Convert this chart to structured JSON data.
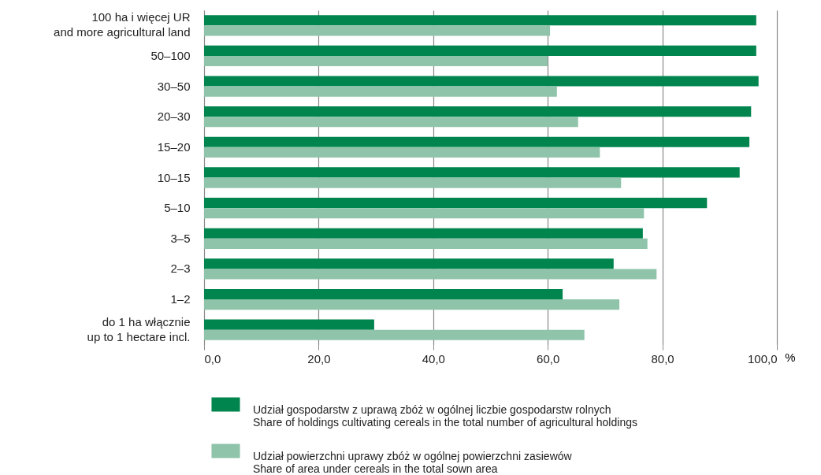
{
  "chart_data": {
    "type": "bar",
    "orientation": "horizontal",
    "categories": [
      "100 ha i więcej UR\nand more agricultural land",
      "50–100",
      "30–50",
      "20–30",
      "15–20",
      "10–15",
      "5–10",
      "3–5",
      "2–3",
      "1–2",
      "do 1 ha włącznie\nup to 1 hectare incl."
    ],
    "series": [
      {
        "name": "Udział gospodarstw z uprawą zbóż w ogólnej liczbie gospodarstw rolnych\nShare of holdings cultivating cereals in the total number of agricultural holdings",
        "color": "#00854f",
        "values": [
          96.4,
          96.4,
          96.8,
          95.5,
          95.2,
          93.5,
          87.8,
          76.6,
          71.5,
          62.6,
          29.7
        ]
      },
      {
        "name": "Udział powierzchni uprawy zbóż w ogólnej powierzchni zasiewów\nShare of area under cereals in the total sown area",
        "color": "#8fc4aa",
        "values": [
          60.4,
          60.0,
          61.6,
          65.3,
          69.1,
          72.8,
          76.8,
          77.4,
          79.0,
          72.5,
          66.4
        ]
      }
    ],
    "xlabel": "%",
    "xlim": [
      0,
      100
    ],
    "xticks": [
      {
        "value": 0,
        "label": "0,0"
      },
      {
        "value": 20,
        "label": "20,0"
      },
      {
        "value": 40,
        "label": "40,0"
      },
      {
        "value": 60,
        "label": "60,0"
      },
      {
        "value": 80,
        "label": "80,0"
      },
      {
        "value": 100,
        "label": "100,0"
      }
    ],
    "grid": "x",
    "legend": "bottom"
  }
}
